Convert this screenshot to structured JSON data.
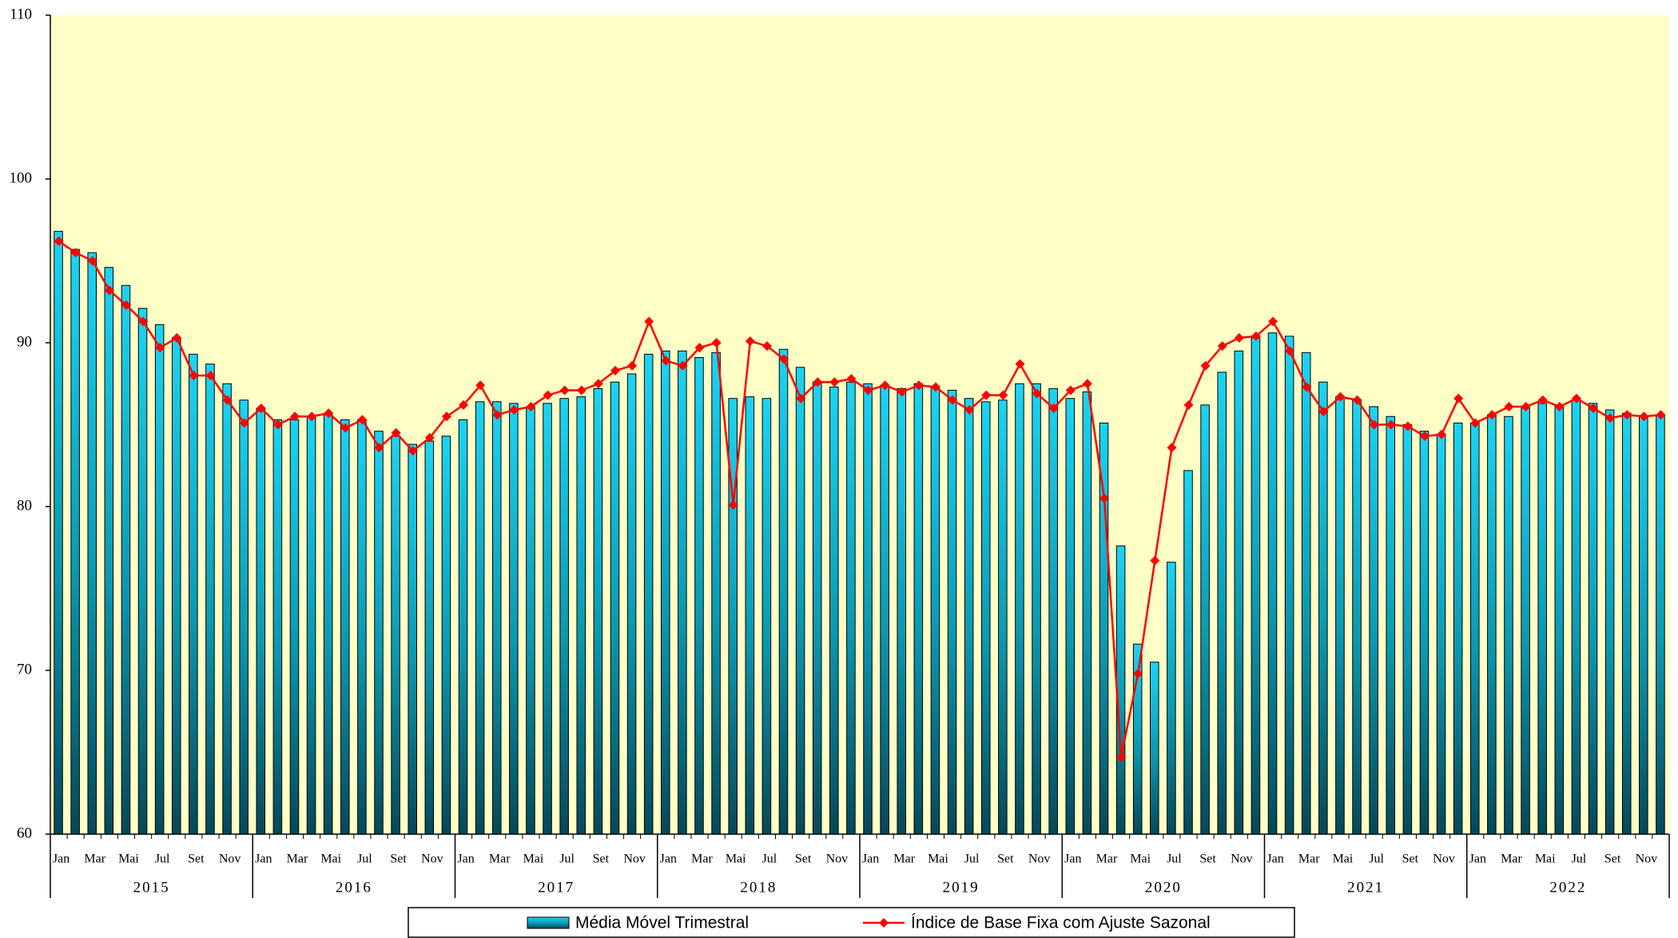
{
  "chart_data": {
    "type": "bar_line",
    "categories": [
      "Jan",
      null,
      "Mar",
      null,
      "Mai",
      null,
      "Jul",
      null,
      "Set",
      null,
      "Nov",
      null,
      "Jan",
      null,
      "Mar",
      null,
      "Mai",
      null,
      "Jul",
      null,
      "Set",
      null,
      "Nov",
      null,
      "Jan",
      null,
      "Mar",
      null,
      "Mai",
      null,
      "Jul",
      null,
      "Set",
      null,
      "Nov",
      null,
      "Jan",
      null,
      "Mar",
      null,
      "Mai",
      null,
      "Jul",
      null,
      "Set",
      null,
      "Nov",
      null,
      "Jan",
      null,
      "Mar",
      null,
      "Mai",
      null,
      "Jul",
      null,
      "Set",
      null,
      "Nov",
      null,
      "Jan",
      null,
      "Mar",
      null,
      "Mai",
      null,
      "Jul",
      null,
      "Set",
      null,
      "Nov",
      null,
      "Jan",
      null,
      "Mar",
      null,
      "Mai",
      null,
      "Jul",
      null,
      "Set",
      null,
      "Nov",
      null,
      "Jan",
      null,
      "Mar",
      null,
      "Mai",
      null,
      "Jul",
      null,
      "Set",
      null,
      "Nov",
      null
    ],
    "years": [
      "2015",
      "2016",
      "2017",
      "2018",
      "2019",
      "2020",
      "2021",
      "2022"
    ],
    "series": [
      {
        "name": "Média Móvel Trimestral",
        "type": "bar",
        "color": "#1cc8ea",
        "values": [
          96.8,
          95.7,
          95.5,
          94.6,
          93.5,
          92.1,
          91.1,
          90.3,
          89.3,
          88.7,
          87.5,
          86.5,
          86.0,
          85.3,
          85.3,
          85.5,
          85.6,
          85.3,
          85.3,
          84.6,
          84.3,
          83.8,
          84.0,
          84.3,
          85.3,
          86.4,
          86.4,
          86.3,
          86.0,
          86.3,
          86.6,
          86.7,
          87.2,
          87.6,
          88.1,
          89.3,
          89.5,
          89.5,
          89.1,
          89.4,
          86.6,
          86.7,
          86.6,
          89.6,
          88.5,
          87.6,
          87.3,
          87.6,
          87.5,
          87.4,
          87.2,
          87.5,
          87.3,
          87.1,
          86.6,
          86.4,
          86.5,
          87.5,
          87.5,
          87.2,
          86.6,
          87.0,
          85.1,
          77.6,
          71.6,
          70.5,
          76.6,
          82.2,
          86.2,
          88.2,
          89.5,
          90.3,
          90.6,
          90.4,
          89.4,
          87.6,
          86.7,
          86.5,
          86.1,
          85.5,
          85.0,
          84.6,
          84.4,
          85.1,
          85.1,
          85.6,
          85.5,
          86.0,
          86.3,
          86.2,
          86.5,
          86.3,
          85.9,
          85.7,
          85.5,
          85.6
        ]
      },
      {
        "name": "Índice de Base Fixa com Ajuste Sazonal",
        "type": "line",
        "color": "#ff0000",
        "values": [
          96.2,
          95.5,
          95.0,
          93.2,
          92.3,
          91.3,
          89.7,
          90.3,
          88.0,
          88.0,
          86.5,
          85.1,
          86.0,
          85.0,
          85.5,
          85.5,
          85.7,
          84.8,
          85.3,
          83.6,
          84.5,
          83.4,
          84.2,
          85.5,
          86.2,
          87.4,
          85.6,
          85.9,
          86.1,
          86.8,
          87.1,
          87.1,
          87.5,
          88.3,
          88.6,
          91.3,
          88.9,
          88.6,
          89.7,
          90.0,
          80.1,
          90.1,
          89.8,
          89.0,
          86.6,
          87.6,
          87.6,
          87.8,
          87.1,
          87.4,
          87.0,
          87.4,
          87.3,
          86.5,
          85.9,
          86.8,
          86.8,
          88.7,
          86.9,
          86.0,
          87.1,
          87.5,
          80.5,
          64.7,
          69.8,
          76.7,
          83.6,
          86.2,
          88.6,
          89.8,
          90.3,
          90.4,
          91.3,
          89.5,
          87.3,
          85.8,
          86.7,
          86.5,
          85.0,
          85.0,
          84.9,
          84.3,
          84.4,
          86.6,
          85.1,
          85.6,
          86.1,
          86.1,
          86.5,
          86.1,
          86.6,
          86.0,
          85.4,
          85.6,
          85.5,
          85.6
        ]
      }
    ],
    "ylim": [
      60,
      110
    ],
    "yticks": [
      60,
      70,
      80,
      90,
      100,
      110
    ],
    "grid": false
  }
}
